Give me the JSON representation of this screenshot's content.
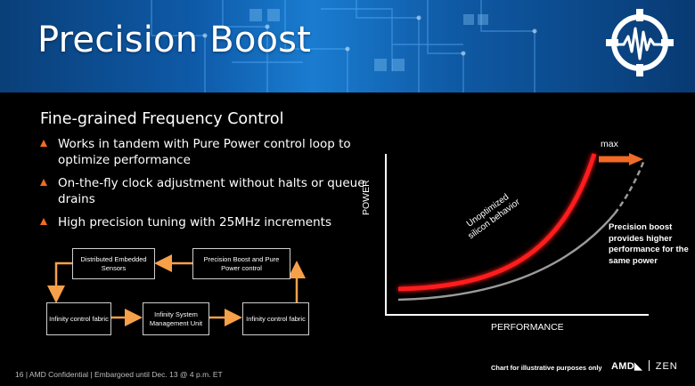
{
  "header": {
    "title": "Precision Boost",
    "logo": {
      "icon": "waveform-crosshair-logo-icon",
      "color": "#ffffff"
    },
    "background_colors": [
      "#0a3f78",
      "#1a7cd0",
      "#083a73"
    ]
  },
  "subtitle": "Fine-grained Frequency Control",
  "bullets": [
    {
      "text": "Works in tandem with Pure Power control loop to optimize performance"
    },
    {
      "text": "On-the-fly clock adjustment without halts or queue drains"
    },
    {
      "text": "High precision tuning with 25MHz increments"
    }
  ],
  "accent_color": "#f26a25",
  "flow_diagram": {
    "boxes": [
      {
        "id": "distributed",
        "label": "Distributed Embedded Sensors"
      },
      {
        "id": "precision",
        "label": "Precision Boost and Pure Power control"
      },
      {
        "id": "fabric_left",
        "label": "Infinity control fabric"
      },
      {
        "id": "sms",
        "label": "Infinity System Management Unit"
      },
      {
        "id": "fabric_right",
        "label": "Infinity control fabric"
      }
    ],
    "arrow_color": "#f6a14a"
  },
  "chart": {
    "y_axis_label": "POWER",
    "x_axis_label": "PERFORMANCE",
    "max_label": "max",
    "red_curve_label": "Unoptimized silicon behavior",
    "note": "Precision boost provides higher performance for the same power",
    "red_color": "#ff1a1a",
    "gray_color": "#9a9a9a"
  },
  "footer": {
    "disclaimer": "Chart for illustrative purposes only",
    "confidential": "16 | AMD Confidential | Embargoed until Dec. 13 @ 4 p.m. ET",
    "brand_amd": "AMD◣",
    "brand_zen": "ZEN"
  }
}
